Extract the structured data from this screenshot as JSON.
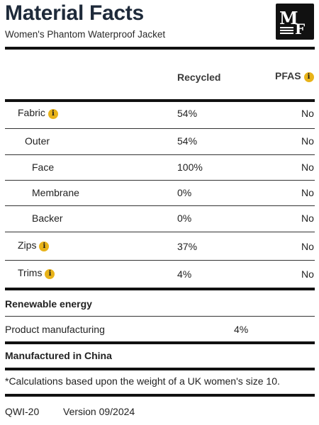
{
  "header": {
    "title": "Material Facts",
    "subtitle": "Women's Phantom Waterproof Jacket",
    "logo_text": "MF"
  },
  "table": {
    "col_recycled": "Recycled",
    "col_pfas": "PFAS",
    "rows": [
      {
        "name": "Fabric",
        "recycled": "54%",
        "pfas": "No",
        "info": true
      },
      {
        "name": "Outer",
        "recycled": "54%",
        "pfas": "No",
        "info": false
      },
      {
        "name": "Face",
        "recycled": "100%",
        "pfas": "No",
        "info": false
      },
      {
        "name": "Membrane",
        "recycled": "0%",
        "pfas": "No",
        "info": false
      },
      {
        "name": "Backer",
        "recycled": "0%",
        "pfas": "No",
        "info": false
      },
      {
        "name": "Zips",
        "recycled": "37%",
        "pfas": "No",
        "info": true
      },
      {
        "name": "Trims",
        "recycled": "4%",
        "pfas": "No",
        "info": true
      }
    ]
  },
  "renewable": {
    "heading": "Renewable energy",
    "label": "Product manufacturing",
    "value": "4%"
  },
  "origin": "Manufactured in China",
  "footnote": "*Calculations based upon the weight of a UK women's size 10.",
  "footer": {
    "code": "QWI-20",
    "version": "Version 09/2024"
  },
  "icons": {
    "info": "info-icon",
    "info_color": "#e8b31a"
  }
}
